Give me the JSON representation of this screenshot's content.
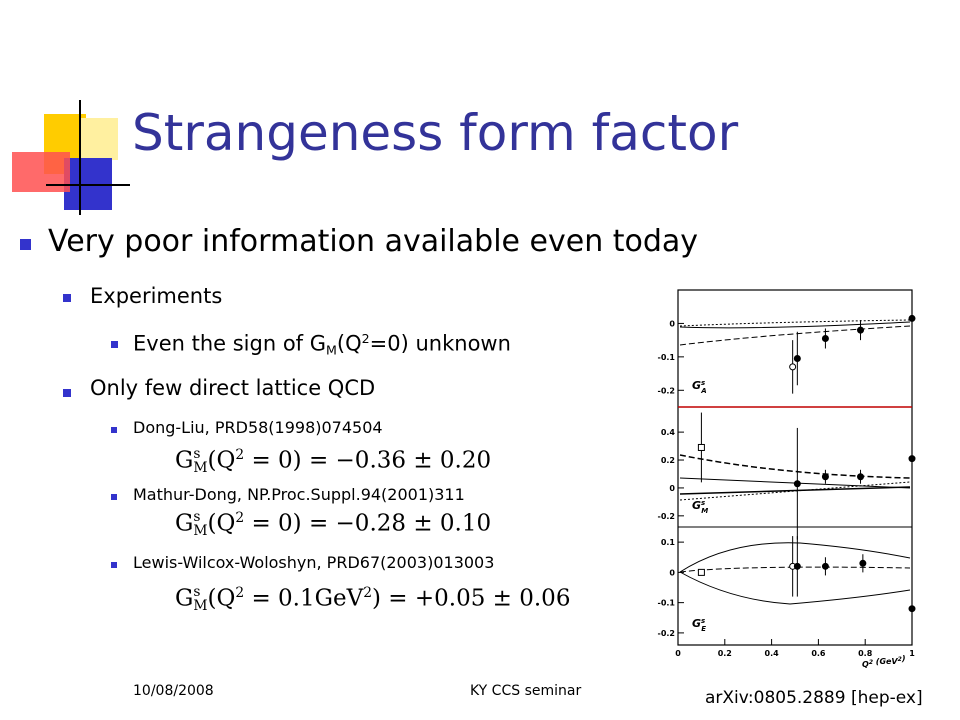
{
  "title": "Strangeness form factor",
  "bullet": {
    "text": "Very poor information available even today",
    "items": [
      {
        "text": "Experiments",
        "items": [
          {
            "segments": [
              {
                "t": "Even the sign of G"
              },
              {
                "sub": "M"
              },
              {
                "t": "(Q"
              },
              {
                "sup": "2"
              },
              {
                "t": "=0) unknown"
              }
            ]
          }
        ]
      },
      {
        "text": "Only few direct lattice QCD",
        "items": [
          {
            "text": "Dong-Liu, PRD58(1998)074504",
            "formula": [
              {
                "t": "G"
              },
              {
                "sup": "s",
                "sub": "M"
              },
              {
                "t": "(Q"
              },
              {
                "sup": "2"
              },
              {
                "t": " = 0) = −0.36 ± 0.20"
              }
            ]
          },
          {
            "text": "Mathur-Dong, NP.Proc.Suppl.94(2001)311",
            "formula": [
              {
                "t": "G"
              },
              {
                "sup": "s",
                "sub": "M"
              },
              {
                "t": "(Q"
              },
              {
                "sup": "2"
              },
              {
                "t": " = 0) = −0.28 ± 0.10"
              }
            ]
          },
          {
            "text": "Lewis-Wilcox-Woloshyn, PRD67(2003)013003",
            "formula": [
              {
                "t": "G"
              },
              {
                "sup": "s",
                "sub": "M"
              },
              {
                "t": "(Q"
              },
              {
                "sup": "2"
              },
              {
                "t": " = 0.1GeV"
              },
              {
                "sup": "2"
              },
              {
                "t": ") = +0.05 ± 0.06"
              }
            ]
          }
        ]
      }
    ]
  },
  "footer": {
    "date": "10/08/2008",
    "event": "KY CCS seminar",
    "reference": "arXiv:0805.2889 [hep-ex]"
  },
  "figure": {
    "xlim": [
      0,
      1
    ],
    "xticks": [
      0,
      0.2,
      0.4,
      0.6,
      0.8,
      1
    ],
    "xlabel": [
      {
        "t": "Q"
      },
      {
        "sup": "2"
      },
      {
        "t": " (GeV"
      },
      {
        "sup": "2"
      },
      {
        "t": ")"
      }
    ],
    "panels": [
      {
        "label": {
          "base": "G",
          "sup": "s",
          "sub": "A"
        },
        "ylim": [
          -0.25,
          0.1
        ],
        "yticks": [
          0,
          -0.1,
          -0.2
        ],
        "points": [
          {
            "x": 0.49,
            "y": -0.13,
            "err": 0.08,
            "marker": "open"
          },
          {
            "x": 0.51,
            "y": -0.105,
            "err": 0.08,
            "marker": "filled"
          },
          {
            "x": 0.63,
            "y": -0.045,
            "err": 0.03,
            "marker": "filled"
          },
          {
            "x": 0.78,
            "y": -0.02,
            "err": 0.03,
            "marker": "filled"
          },
          {
            "x": 1.0,
            "y": 0.015,
            "err": 0.03,
            "marker": "filled"
          }
        ]
      },
      {
        "label": {
          "base": "G",
          "sup": "s",
          "sub": "M"
        },
        "ylim": [
          -0.28,
          0.58
        ],
        "yticks": [
          0.4,
          0.2,
          0,
          -0.2
        ],
        "points": [
          {
            "x": 0.1,
            "y": 0.29,
            "err": 0.25,
            "marker": "square"
          },
          {
            "x": 0.51,
            "y": 0.03,
            "err": 0.4,
            "marker": "filled"
          },
          {
            "x": 0.63,
            "y": 0.08,
            "err": 0.05,
            "marker": "filled"
          },
          {
            "x": 0.78,
            "y": 0.08,
            "err": 0.05,
            "marker": "filled"
          },
          {
            "x": 1.0,
            "y": 0.21,
            "err": 0.07,
            "marker": "filled"
          }
        ]
      },
      {
        "label": {
          "base": "G",
          "sup": "s",
          "sub": "E"
        },
        "ylim": [
          -0.24,
          0.15
        ],
        "yticks": [
          0.1,
          0,
          -0.1,
          -0.2
        ],
        "points": [
          {
            "x": 0.1,
            "y": 0.0,
            "err": 0.01,
            "marker": "square"
          },
          {
            "x": 0.49,
            "y": 0.02,
            "err": 0.1,
            "marker": "open"
          },
          {
            "x": 0.51,
            "y": 0.02,
            "err": 0.1,
            "marker": "filled"
          },
          {
            "x": 0.63,
            "y": 0.02,
            "err": 0.03,
            "marker": "filled"
          },
          {
            "x": 0.79,
            "y": 0.03,
            "err": 0.03,
            "marker": "filled"
          },
          {
            "x": 1.0,
            "y": -0.12,
            "err": 0.1,
            "marker": "filled"
          }
        ]
      }
    ]
  }
}
